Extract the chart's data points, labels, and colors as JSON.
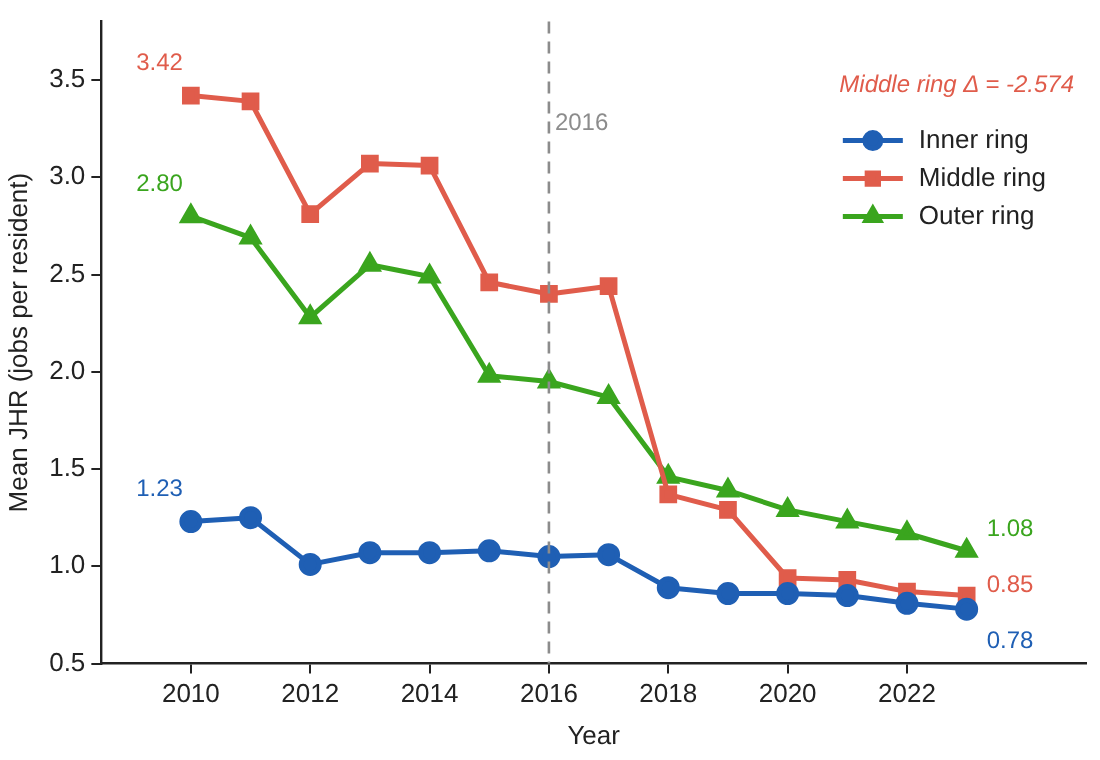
{
  "chart_data": {
    "type": "line",
    "xlabel": "Year",
    "ylabel": "Mean JHR (jobs per resident)",
    "x": [
      2010,
      2011,
      2012,
      2013,
      2014,
      2015,
      2016,
      2017,
      2018,
      2019,
      2020,
      2021,
      2022,
      2023
    ],
    "series": [
      {
        "name": "Inner ring",
        "color": "#1f5fb4",
        "marker": "circle",
        "values": [
          1.23,
          1.25,
          1.01,
          1.07,
          1.07,
          1.08,
          1.05,
          1.06,
          0.89,
          0.86,
          0.86,
          0.85,
          0.81,
          0.78
        ],
        "value_labels": [
          "1.23",
          null,
          null,
          null,
          null,
          null,
          null,
          null,
          null,
          null,
          null,
          null,
          null,
          "0.78"
        ]
      },
      {
        "name": "Middle ring",
        "color": "#e05c4b",
        "marker": "square",
        "values": [
          3.42,
          3.39,
          2.81,
          3.07,
          3.06,
          2.46,
          2.4,
          2.44,
          1.37,
          1.29,
          0.94,
          0.93,
          0.87,
          0.85
        ],
        "value_labels": [
          "3.42",
          null,
          null,
          null,
          null,
          null,
          null,
          null,
          null,
          null,
          null,
          null,
          null,
          "0.85"
        ]
      },
      {
        "name": "Outer ring",
        "color": "#3aa51e",
        "marker": "triangle",
        "values": [
          2.8,
          2.69,
          2.28,
          2.55,
          2.49,
          1.98,
          1.95,
          1.87,
          1.46,
          1.39,
          1.29,
          1.23,
          1.17,
          1.08
        ],
        "value_labels": [
          "2.80",
          null,
          null,
          null,
          null,
          null,
          null,
          null,
          null,
          null,
          null,
          null,
          null,
          "1.08"
        ]
      }
    ],
    "xlim": [
      2008.5,
      2025
    ],
    "xticks": [
      2010,
      2012,
      2014,
      2016,
      2018,
      2020,
      2022
    ],
    "ylim": [
      0.5,
      3.8
    ],
    "yticks": [
      {
        "value": 0.5,
        "label": "0.5"
      },
      {
        "value": 1.0,
        "label": "1.0"
      },
      {
        "value": 1.5,
        "label": "1.5"
      },
      {
        "value": 2.0,
        "label": "2.0"
      },
      {
        "value": 2.5,
        "label": "2.5"
      },
      {
        "value": 3.0,
        "label": "3.0"
      },
      {
        "value": 3.5,
        "label": "3.5"
      }
    ],
    "ref_lines": [
      {
        "axis": "x",
        "value": 2016,
        "label": "2016",
        "color": "#8c8c8c",
        "line_style": "dashed"
      }
    ],
    "annotations": [
      "Middle ring Δ = -2.574"
    ],
    "grid": false,
    "legend": "top right",
    "line_style": "solid"
  }
}
